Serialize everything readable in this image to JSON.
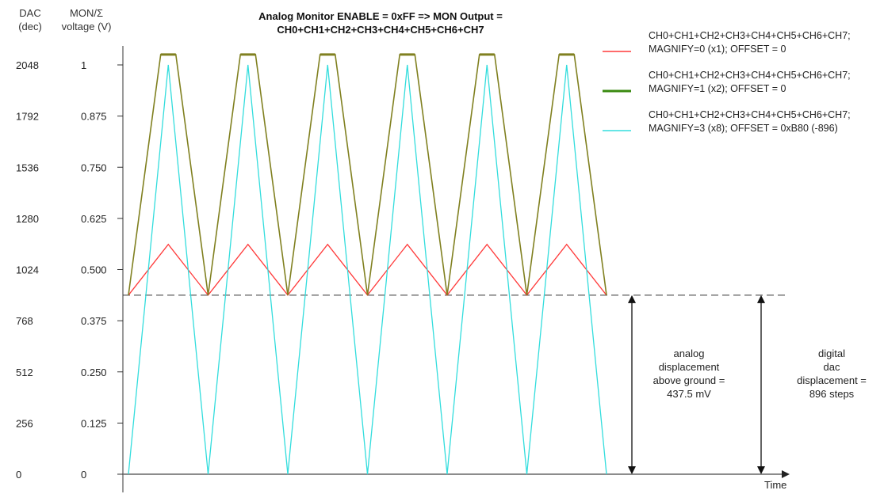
{
  "chart_data": {
    "type": "line",
    "title": "Analog Monitor ENABLE = 0xFF => MON Output =",
    "subtitle": "CH0+CH1+CH2+CH3+CH4+CH5+CH6+CH7",
    "left_axis_header": [
      "DAC",
      "(dec)"
    ],
    "right_axis_header": [
      "MON/Σ",
      "voltage (V)"
    ],
    "xlabel": "Time",
    "y_dac_ticks": [
      "0",
      "256",
      "512",
      "768",
      "1024",
      "1280",
      "1536",
      "1792",
      "2048"
    ],
    "y_volt_ticks": [
      "0",
      "0.125",
      "0.250",
      "0.375",
      "0.500",
      "0.625",
      "0.750",
      "0.875",
      "1"
    ],
    "ylim": [
      0,
      2304
    ],
    "periods": 6,
    "series": [
      {
        "name": "CH0+CH1+CH2+CH3+CH4+CH5+CH6+CH7; MAGNIFY=0 (x1); OFFSET = 0",
        "legend": [
          "CH0+CH1+CH2+CH3+CH4+CH5+CH6+CH7;",
          "MAGNIFY=0 (x1); OFFSET = 0"
        ],
        "color": "#ff3a3a",
        "shape": "triangle",
        "low": 896,
        "high": 1150
      },
      {
        "name": "CH0+CH1+CH2+CH3+CH4+CH5+CH6+CH7; MAGNIFY=1 (x2); OFFSET = 0",
        "legend": [
          "CH0+CH1+CH2+CH3+CH4+CH5+CH6+CH7;",
          "MAGNIFY=1 (x2); OFFSET = 0"
        ],
        "color": "#808020",
        "legend_color": "#3a8a10",
        "shape": "trapezoid",
        "low": 896,
        "high": 2100
      },
      {
        "name": "CH0+CH1+CH2+CH3+CH4+CH5+CH6+CH7; MAGNIFY=3 (x8); OFFSET = 0xB80 (-896)",
        "legend": [
          "CH0+CH1+CH2+CH3+CH4+CH5+CH6+CH7;",
          "MAGNIFY=3 (x8); OFFSET = 0xB80 (-896)"
        ],
        "color": "#33dddd",
        "shape": "triangle",
        "low": 0,
        "high": 2048
      }
    ],
    "reference_line": 896,
    "annotations": {
      "analog": [
        "analog",
        "displacement",
        "above ground =",
        "437.5 mV"
      ],
      "digital": [
        "digital",
        "dac",
        "displacement =",
        "896 steps"
      ]
    }
  }
}
